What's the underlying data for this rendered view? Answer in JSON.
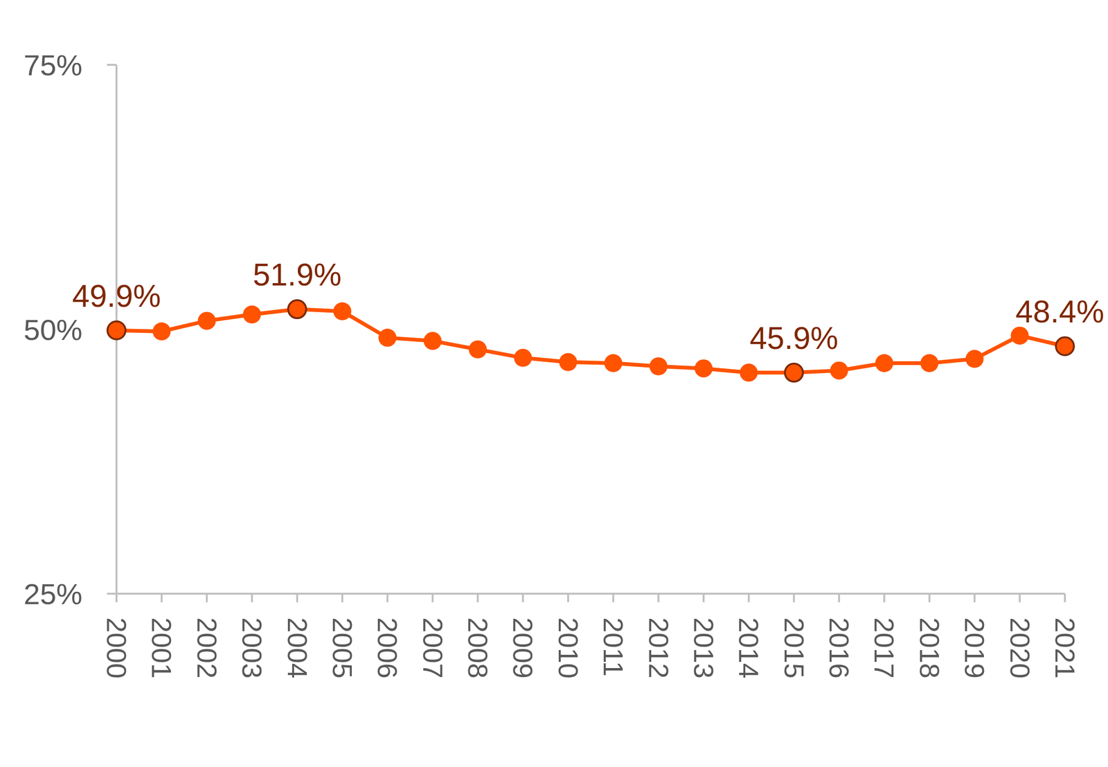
{
  "chart_data": {
    "type": "line",
    "categories": [
      "2000",
      "2001",
      "2002",
      "2003",
      "2004",
      "2005",
      "2006",
      "2007",
      "2008",
      "2009",
      "2010",
      "2011",
      "2012",
      "2013",
      "2014",
      "2015",
      "2016",
      "2017",
      "2018",
      "2019",
      "2020",
      "2021"
    ],
    "values": [
      49.9,
      49.8,
      50.8,
      51.4,
      51.9,
      51.7,
      49.2,
      48.9,
      48.1,
      47.3,
      46.9,
      46.8,
      46.5,
      46.3,
      45.9,
      45.9,
      46.1,
      46.8,
      46.8,
      47.2,
      49.4,
      48.4
    ],
    "value_labels": [
      "49.9%",
      null,
      null,
      null,
      "51.9%",
      null,
      null,
      null,
      null,
      null,
      null,
      null,
      null,
      null,
      null,
      "45.9%",
      null,
      null,
      null,
      null,
      null,
      "48.4%"
    ],
    "color": "#ff5300",
    "marker": "circle",
    "line_style": "solid",
    "ylim": [
      25,
      75
    ],
    "yticks": [
      {
        "value": 25,
        "label": "25%"
      },
      {
        "value": 50,
        "label": "50%"
      },
      {
        "value": 75,
        "label": "75%"
      }
    ],
    "grid": false
  }
}
